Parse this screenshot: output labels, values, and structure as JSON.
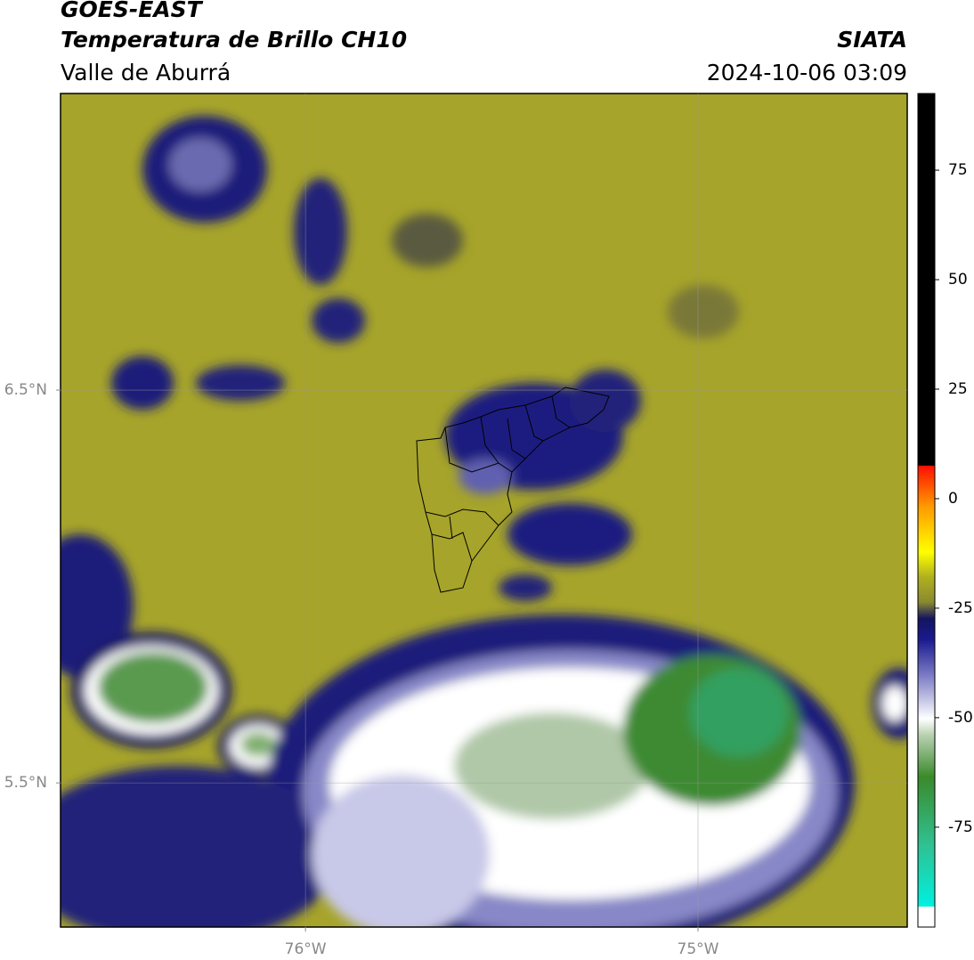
{
  "header": {
    "title": "GOES-EAST",
    "subtitle": "Temperatura de Brillo CH10",
    "region": "Valle de Aburrá",
    "source": "SIATA",
    "datetime": "2024-10-06 03:09"
  },
  "map": {
    "xlim": [
      -76.624,
      -74.467
    ],
    "ylim": [
      5.133,
      7.255
    ],
    "xticks": [
      {
        "value": -76,
        "label": "76°W"
      },
      {
        "value": -75,
        "label": "75°W"
      }
    ],
    "yticks": [
      {
        "value": 6.5,
        "label": "6.5°N"
      },
      {
        "value": 5.5,
        "label": "5.5°N"
      }
    ],
    "grid": true
  },
  "colorbar": {
    "lim": [
      -97.8,
      92.5
    ],
    "ticks": [
      75,
      50,
      25,
      0,
      -25,
      -50,
      -75
    ]
  }
}
